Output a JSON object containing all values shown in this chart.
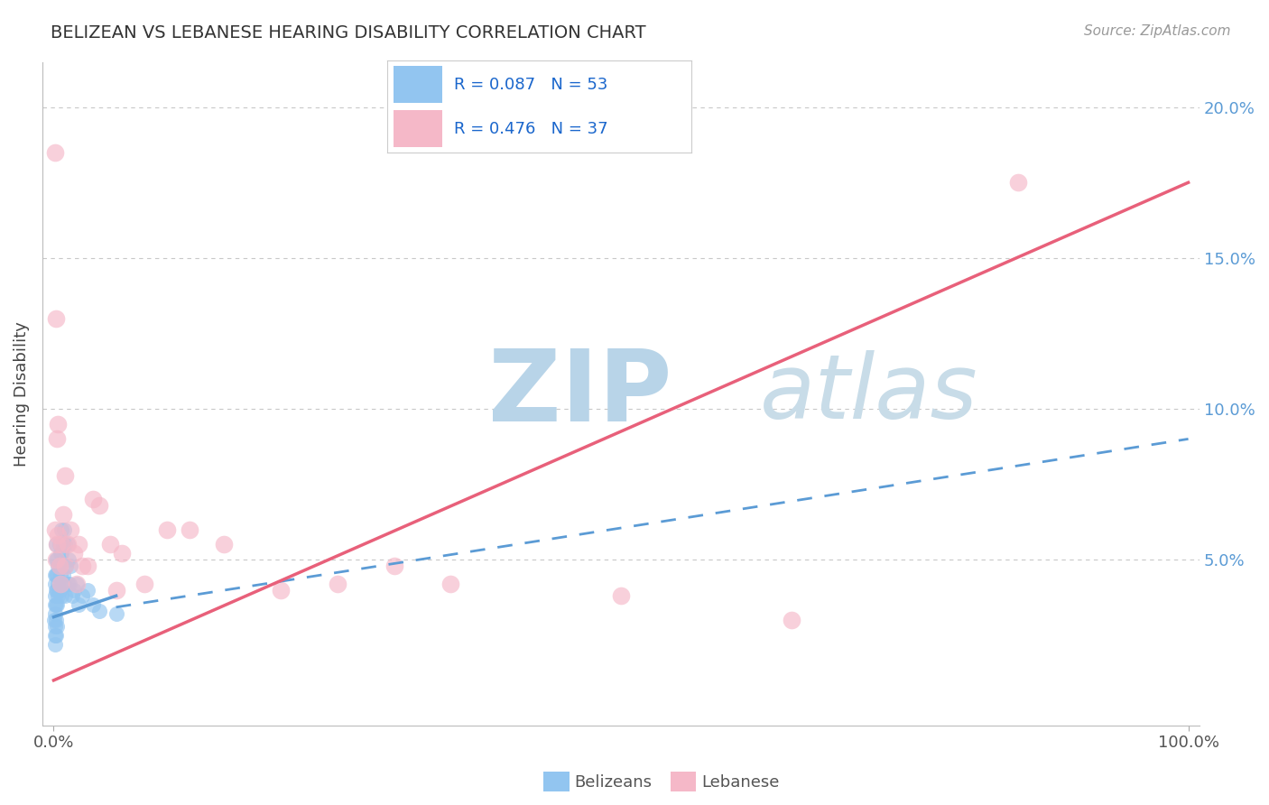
{
  "title": "BELIZEAN VS LEBANESE HEARING DISABILITY CORRELATION CHART",
  "source": "Source: ZipAtlas.com",
  "ylabel": "Hearing Disability",
  "belizean_label": "Belizeans",
  "lebanese_label": "Lebanese",
  "belizean_R": 0.087,
  "belizean_N": 53,
  "lebanese_R": 0.476,
  "lebanese_N": 37,
  "belizean_color": "#92c5f0",
  "lebanese_color": "#f5b8c8",
  "belizean_line_color": "#5b9bd5",
  "lebanese_line_color": "#e8607a",
  "xlim": [
    -0.01,
    1.01
  ],
  "ylim": [
    -0.005,
    0.215
  ],
  "yticks": [
    0.05,
    0.1,
    0.15,
    0.2
  ],
  "ytick_labels": [
    "5.0%",
    "10.0%",
    "15.0%",
    "20.0%"
  ],
  "xticks": [
    0.0,
    1.0
  ],
  "xtick_labels": [
    "0.0%",
    "100.0%"
  ],
  "grid_color": "#c8c8c8",
  "background_color": "#ffffff",
  "watermark_zip_color": "#b8d4e8",
  "watermark_atlas_color": "#c8dce8",
  "belizean_line_start_x": 0.0,
  "belizean_line_start_y": 0.031,
  "belizean_line_solid_end_x": 0.055,
  "belizean_line_solid_end_y": 0.038,
  "belizean_line_end_x": 1.0,
  "belizean_line_end_y": 0.09,
  "lebanese_line_start_x": 0.0,
  "lebanese_line_start_y": 0.01,
  "lebanese_line_end_x": 1.0,
  "lebanese_line_end_y": 0.175,
  "belizean_points_x": [
    0.0005,
    0.001,
    0.001,
    0.001,
    0.001,
    0.001,
    0.001,
    0.001,
    0.001,
    0.002,
    0.002,
    0.002,
    0.002,
    0.002,
    0.002,
    0.002,
    0.003,
    0.003,
    0.003,
    0.003,
    0.003,
    0.004,
    0.004,
    0.004,
    0.005,
    0.005,
    0.005,
    0.006,
    0.006,
    0.007,
    0.007,
    0.007,
    0.008,
    0.008,
    0.009,
    0.009,
    0.01,
    0.01,
    0.011,
    0.012,
    0.012,
    0.013,
    0.014,
    0.015,
    0.016,
    0.018,
    0.02,
    0.022,
    0.025,
    0.03,
    0.035,
    0.04,
    0.055
  ],
  "belizean_points_y": [
    0.03,
    0.045,
    0.042,
    0.038,
    0.035,
    0.032,
    0.028,
    0.025,
    0.022,
    0.055,
    0.05,
    0.045,
    0.04,
    0.035,
    0.03,
    0.025,
    0.05,
    0.045,
    0.04,
    0.035,
    0.028,
    0.048,
    0.042,
    0.038,
    0.055,
    0.048,
    0.04,
    0.052,
    0.045,
    0.06,
    0.052,
    0.038,
    0.055,
    0.045,
    0.06,
    0.042,
    0.055,
    0.038,
    0.048,
    0.055,
    0.042,
    0.05,
    0.042,
    0.048,
    0.038,
    0.04,
    0.042,
    0.035,
    0.038,
    0.04,
    0.035,
    0.033,
    0.032
  ],
  "lebanese_points_x": [
    0.001,
    0.001,
    0.002,
    0.002,
    0.003,
    0.003,
    0.004,
    0.004,
    0.005,
    0.006,
    0.007,
    0.008,
    0.01,
    0.01,
    0.012,
    0.015,
    0.018,
    0.02,
    0.022,
    0.025,
    0.03,
    0.035,
    0.04,
    0.05,
    0.055,
    0.06,
    0.08,
    0.1,
    0.12,
    0.15,
    0.2,
    0.25,
    0.3,
    0.35,
    0.5,
    0.65,
    0.85
  ],
  "lebanese_points_y": [
    0.185,
    0.06,
    0.13,
    0.05,
    0.09,
    0.055,
    0.095,
    0.058,
    0.048,
    0.042,
    0.055,
    0.065,
    0.078,
    0.048,
    0.055,
    0.06,
    0.052,
    0.042,
    0.055,
    0.048,
    0.048,
    0.07,
    0.068,
    0.055,
    0.04,
    0.052,
    0.042,
    0.06,
    0.06,
    0.055,
    0.04,
    0.042,
    0.048,
    0.042,
    0.038,
    0.03,
    0.175
  ]
}
